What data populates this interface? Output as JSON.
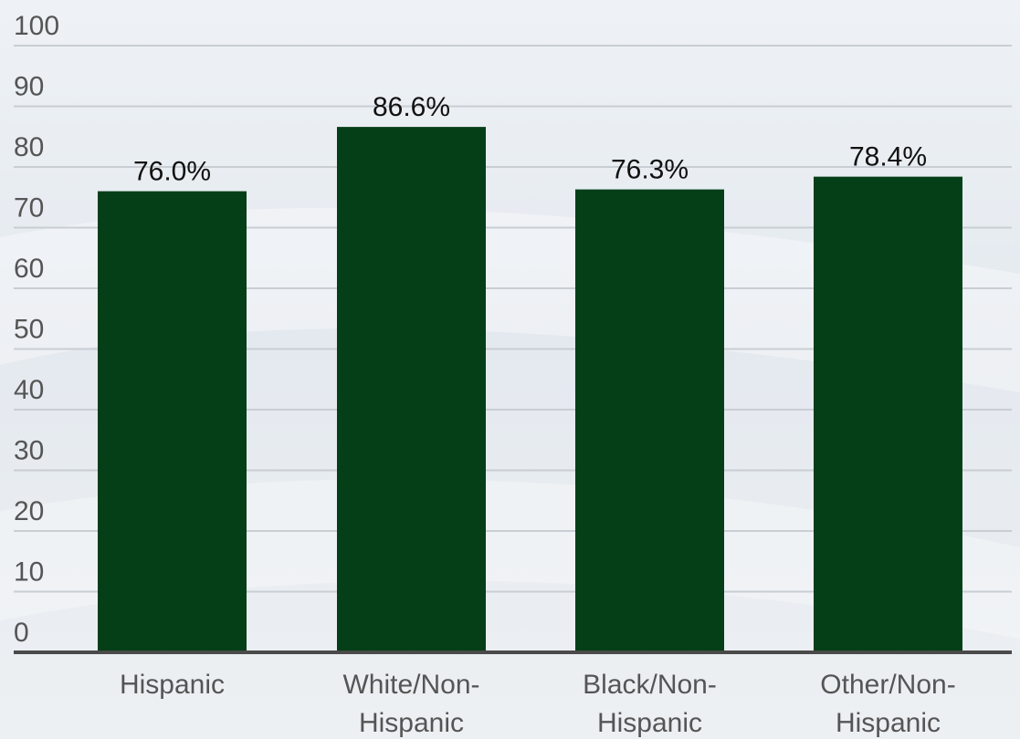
{
  "chart_data": {
    "type": "bar",
    "title": "",
    "xlabel": "",
    "ylabel": "",
    "categories": [
      [
        "Hispanic"
      ],
      [
        "White/Non-",
        "Hispanic"
      ],
      [
        "Black/Non-",
        "Hispanic"
      ],
      [
        "Other/Non-",
        "Hispanic"
      ]
    ],
    "values": [
      76.0,
      86.6,
      76.3,
      78.4
    ],
    "data_labels": [
      "76.0%",
      "86.6%",
      "76.3%",
      "78.4%"
    ],
    "ylim": [
      0,
      100
    ],
    "yticks": [
      "0",
      "10",
      "20",
      "30",
      "40",
      "50",
      "60",
      "70",
      "80",
      "90",
      "100"
    ],
    "grid": true,
    "legend": "none",
    "colors": {
      "bar": "#053f18",
      "grid": "#c9ced4",
      "axis": "#4a4a4a",
      "tick_text": "#555555",
      "label_text": "#111111"
    }
  }
}
